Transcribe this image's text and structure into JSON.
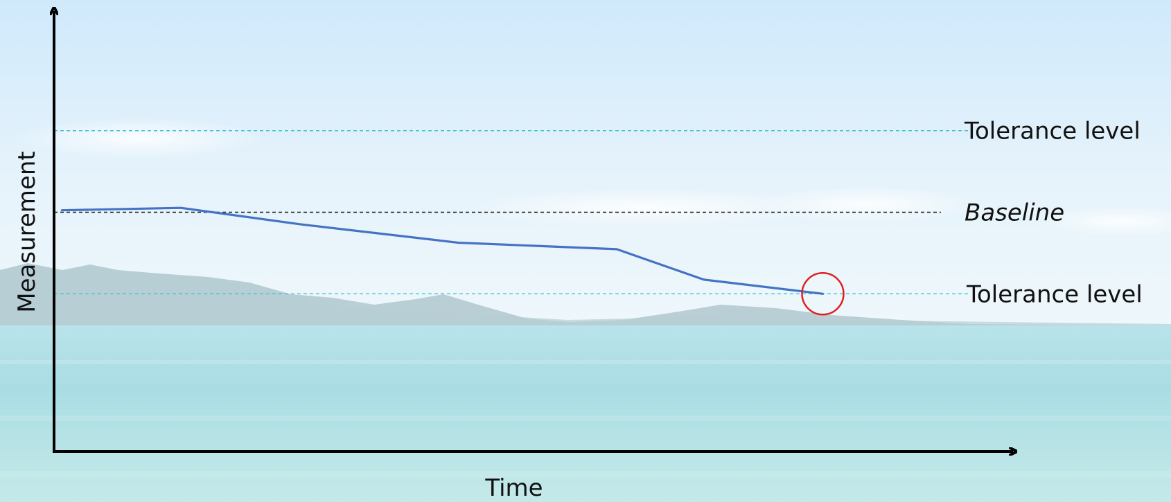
{
  "chart_data": {
    "type": "line",
    "xlabel": "Time",
    "ylabel": "Measurement",
    "series": [
      {
        "values": [
          {
            "x": 0.0,
            "y": 0.018
          },
          {
            "x": 1.5,
            "y": 0.04
          },
          {
            "x": 3.0,
            "y": -0.11
          },
          {
            "x": 5.0,
            "y": -0.28
          },
          {
            "x": 7.0,
            "y": -0.34
          },
          {
            "x": 8.1,
            "y": -0.62
          },
          {
            "x": 9.6,
            "y": -0.75
          }
        ],
        "color": "#4472c4"
      }
    ],
    "reference_lines": [
      {
        "label": "Tolerance level",
        "y": 0.75,
        "style": "dashed",
        "color": "#3ec3d6"
      },
      {
        "label": "Baseline",
        "y": 0.0,
        "style": "dashed",
        "color": "#222222"
      },
      {
        "label": "Tolerance level",
        "y": -0.75,
        "style": "dashed",
        "color": "#3ec3d6"
      }
    ],
    "highlight": {
      "x": 9.6,
      "y": -0.75,
      "shape": "circle",
      "color": "#e02020"
    },
    "xlim": [
      -0.1,
      12.0
    ],
    "ylim": [
      -2.2,
      1.85
    ],
    "grid": false,
    "background": "beach-sea-photo"
  }
}
